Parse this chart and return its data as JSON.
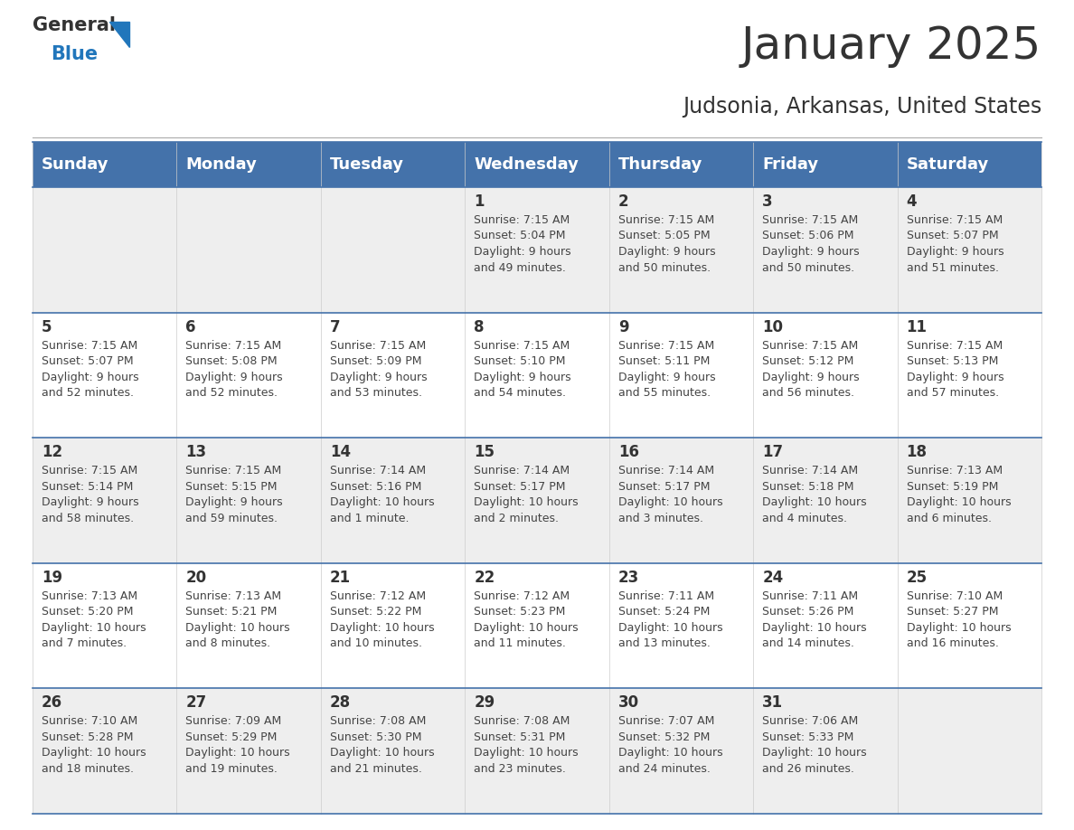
{
  "title": "January 2025",
  "subtitle": "Judsonia, Arkansas, United States",
  "header_color": "#4472aa",
  "header_text_color": "#ffffff",
  "cell_bg_white": "#ffffff",
  "cell_bg_gray": "#eeeeee",
  "day_number_color": "#333333",
  "info_text_color": "#444444",
  "border_color": "#4472aa",
  "weekdays": [
    "Sunday",
    "Monday",
    "Tuesday",
    "Wednesday",
    "Thursday",
    "Friday",
    "Saturday"
  ],
  "weeks": [
    [
      {
        "day": "",
        "info": ""
      },
      {
        "day": "",
        "info": ""
      },
      {
        "day": "",
        "info": ""
      },
      {
        "day": "1",
        "info": "Sunrise: 7:15 AM\nSunset: 5:04 PM\nDaylight: 9 hours\nand 49 minutes."
      },
      {
        "day": "2",
        "info": "Sunrise: 7:15 AM\nSunset: 5:05 PM\nDaylight: 9 hours\nand 50 minutes."
      },
      {
        "day": "3",
        "info": "Sunrise: 7:15 AM\nSunset: 5:06 PM\nDaylight: 9 hours\nand 50 minutes."
      },
      {
        "day": "4",
        "info": "Sunrise: 7:15 AM\nSunset: 5:07 PM\nDaylight: 9 hours\nand 51 minutes."
      }
    ],
    [
      {
        "day": "5",
        "info": "Sunrise: 7:15 AM\nSunset: 5:07 PM\nDaylight: 9 hours\nand 52 minutes."
      },
      {
        "day": "6",
        "info": "Sunrise: 7:15 AM\nSunset: 5:08 PM\nDaylight: 9 hours\nand 52 minutes."
      },
      {
        "day": "7",
        "info": "Sunrise: 7:15 AM\nSunset: 5:09 PM\nDaylight: 9 hours\nand 53 minutes."
      },
      {
        "day": "8",
        "info": "Sunrise: 7:15 AM\nSunset: 5:10 PM\nDaylight: 9 hours\nand 54 minutes."
      },
      {
        "day": "9",
        "info": "Sunrise: 7:15 AM\nSunset: 5:11 PM\nDaylight: 9 hours\nand 55 minutes."
      },
      {
        "day": "10",
        "info": "Sunrise: 7:15 AM\nSunset: 5:12 PM\nDaylight: 9 hours\nand 56 minutes."
      },
      {
        "day": "11",
        "info": "Sunrise: 7:15 AM\nSunset: 5:13 PM\nDaylight: 9 hours\nand 57 minutes."
      }
    ],
    [
      {
        "day": "12",
        "info": "Sunrise: 7:15 AM\nSunset: 5:14 PM\nDaylight: 9 hours\nand 58 minutes."
      },
      {
        "day": "13",
        "info": "Sunrise: 7:15 AM\nSunset: 5:15 PM\nDaylight: 9 hours\nand 59 minutes."
      },
      {
        "day": "14",
        "info": "Sunrise: 7:14 AM\nSunset: 5:16 PM\nDaylight: 10 hours\nand 1 minute."
      },
      {
        "day": "15",
        "info": "Sunrise: 7:14 AM\nSunset: 5:17 PM\nDaylight: 10 hours\nand 2 minutes."
      },
      {
        "day": "16",
        "info": "Sunrise: 7:14 AM\nSunset: 5:17 PM\nDaylight: 10 hours\nand 3 minutes."
      },
      {
        "day": "17",
        "info": "Sunrise: 7:14 AM\nSunset: 5:18 PM\nDaylight: 10 hours\nand 4 minutes."
      },
      {
        "day": "18",
        "info": "Sunrise: 7:13 AM\nSunset: 5:19 PM\nDaylight: 10 hours\nand 6 minutes."
      }
    ],
    [
      {
        "day": "19",
        "info": "Sunrise: 7:13 AM\nSunset: 5:20 PM\nDaylight: 10 hours\nand 7 minutes."
      },
      {
        "day": "20",
        "info": "Sunrise: 7:13 AM\nSunset: 5:21 PM\nDaylight: 10 hours\nand 8 minutes."
      },
      {
        "day": "21",
        "info": "Sunrise: 7:12 AM\nSunset: 5:22 PM\nDaylight: 10 hours\nand 10 minutes."
      },
      {
        "day": "22",
        "info": "Sunrise: 7:12 AM\nSunset: 5:23 PM\nDaylight: 10 hours\nand 11 minutes."
      },
      {
        "day": "23",
        "info": "Sunrise: 7:11 AM\nSunset: 5:24 PM\nDaylight: 10 hours\nand 13 minutes."
      },
      {
        "day": "24",
        "info": "Sunrise: 7:11 AM\nSunset: 5:26 PM\nDaylight: 10 hours\nand 14 minutes."
      },
      {
        "day": "25",
        "info": "Sunrise: 7:10 AM\nSunset: 5:27 PM\nDaylight: 10 hours\nand 16 minutes."
      }
    ],
    [
      {
        "day": "26",
        "info": "Sunrise: 7:10 AM\nSunset: 5:28 PM\nDaylight: 10 hours\nand 18 minutes."
      },
      {
        "day": "27",
        "info": "Sunrise: 7:09 AM\nSunset: 5:29 PM\nDaylight: 10 hours\nand 19 minutes."
      },
      {
        "day": "28",
        "info": "Sunrise: 7:08 AM\nSunset: 5:30 PM\nDaylight: 10 hours\nand 21 minutes."
      },
      {
        "day": "29",
        "info": "Sunrise: 7:08 AM\nSunset: 5:31 PM\nDaylight: 10 hours\nand 23 minutes."
      },
      {
        "day": "30",
        "info": "Sunrise: 7:07 AM\nSunset: 5:32 PM\nDaylight: 10 hours\nand 24 minutes."
      },
      {
        "day": "31",
        "info": "Sunrise: 7:06 AM\nSunset: 5:33 PM\nDaylight: 10 hours\nand 26 minutes."
      },
      {
        "day": "",
        "info": ""
      }
    ]
  ],
  "logo_general_color": "#333333",
  "logo_blue_color": "#2176bb",
  "title_fontsize": 36,
  "subtitle_fontsize": 17,
  "header_fontsize": 13,
  "day_number_fontsize": 12,
  "info_fontsize": 9.0
}
